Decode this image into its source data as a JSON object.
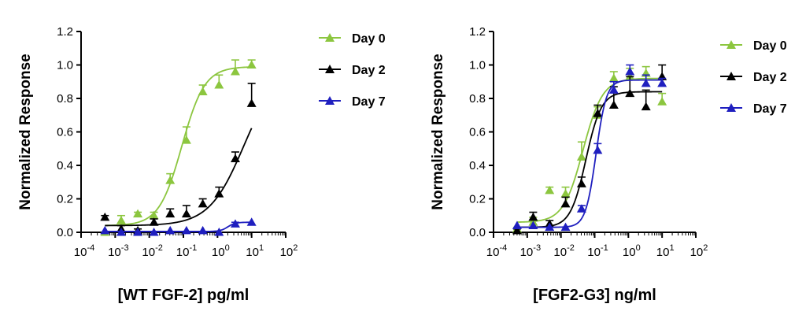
{
  "colors": {
    "day0": "#8cc63f",
    "day2": "#000000",
    "day7": "#1f1fbf"
  },
  "chart_data": [
    {
      "type": "scatter",
      "xlabel": "[WT FGF-2] pg/ml",
      "ylabel": "Normalized Response",
      "xscale": "log",
      "xlim": [
        0.0001,
        100
      ],
      "ylim": [
        0,
        1.2
      ],
      "xticks": [
        {
          "base": "10",
          "exp": "-4"
        },
        {
          "base": "10",
          "exp": "-3"
        },
        {
          "base": "10",
          "exp": "-2"
        },
        {
          "base": "10",
          "exp": "-1"
        },
        {
          "base": "10",
          "exp": "0"
        },
        {
          "base": "10",
          "exp": "1"
        },
        {
          "base": "10",
          "exp": "2"
        }
      ],
      "yticks": [
        "0.0",
        "0.2",
        "0.4",
        "0.6",
        "0.8",
        "1.0",
        "1.2"
      ],
      "legend_position": "right",
      "series": [
        {
          "name": "Day 0",
          "color": "#8cc63f",
          "x": [
            0.0005,
            0.0015,
            0.0046,
            0.0137,
            0.041,
            0.123,
            0.37,
            1.11,
            3.33,
            10
          ],
          "y": [
            0.0,
            0.07,
            0.11,
            0.1,
            0.31,
            0.55,
            0.84,
            0.88,
            0.96,
            1.0
          ],
          "err": [
            0.0,
            0.03,
            0.01,
            0.02,
            0.04,
            0.08,
            0.04,
            0.06,
            0.07,
            0.03
          ],
          "fit": {
            "bottom": 0.04,
            "top": 0.99,
            "ec50": 0.09,
            "hill": 1.3
          }
        },
        {
          "name": "Day 2",
          "color": "#000000",
          "x": [
            0.0005,
            0.0015,
            0.0046,
            0.0137,
            0.041,
            0.123,
            0.37,
            1.11,
            3.33,
            10
          ],
          "y": [
            0.09,
            0.02,
            0.01,
            0.06,
            0.11,
            0.11,
            0.17,
            0.23,
            0.44,
            0.77
          ],
          "err": [
            0.01,
            0.02,
            0.01,
            0.02,
            0.03,
            0.05,
            0.03,
            0.04,
            0.04,
            0.12
          ],
          "fit": {
            "bottom": 0.04,
            "top": 1.0,
            "ec50": 6.0,
            "hill": 0.85
          }
        },
        {
          "name": "Day 7",
          "color": "#1f1fbf",
          "x": [
            0.0005,
            0.0015,
            0.0046,
            0.0137,
            0.041,
            0.123,
            0.37,
            1.11,
            3.33,
            10
          ],
          "y": [
            0.01,
            0.0,
            0.0,
            0.0,
            0.01,
            0.01,
            0.01,
            0.0,
            0.05,
            0.06
          ],
          "err": [
            0.0,
            0.0,
            0.0,
            0.0,
            0.0,
            0.0,
            0.0,
            0.0,
            0.01,
            0.0
          ],
          "fit": {
            "bottom": 0.005,
            "top": 0.06,
            "ec50": 2.0,
            "hill": 4.0
          }
        }
      ]
    },
    {
      "type": "scatter",
      "xlabel": "[FGF2-G3] ng/ml",
      "ylabel": "Normalized Response",
      "xscale": "log",
      "xlim": [
        0.0001,
        100
      ],
      "ylim": [
        0,
        1.2
      ],
      "xticks": [
        {
          "base": "10",
          "exp": "-4"
        },
        {
          "base": "10",
          "exp": "-3"
        },
        {
          "base": "10",
          "exp": "-2"
        },
        {
          "base": "10",
          "exp": "-1"
        },
        {
          "base": "10",
          "exp": "0"
        },
        {
          "base": "10",
          "exp": "1"
        },
        {
          "base": "10",
          "exp": "2"
        }
      ],
      "yticks": [
        "0.0",
        "0.2",
        "0.4",
        "0.6",
        "0.8",
        "1.0",
        "1.2"
      ],
      "legend_position": "right",
      "series": [
        {
          "name": "Day 0",
          "color": "#8cc63f",
          "x": [
            0.0005,
            0.0015,
            0.0046,
            0.0137,
            0.041,
            0.123,
            0.37,
            1.11,
            3.33,
            10
          ],
          "y": [
            0.02,
            0.06,
            0.25,
            0.23,
            0.45,
            0.7,
            0.92,
            0.93,
            0.95,
            0.78
          ],
          "err": [
            0.01,
            0.03,
            0.02,
            0.04,
            0.09,
            0.05,
            0.04,
            0.05,
            0.04,
            0.05
          ],
          "fit": {
            "bottom": 0.06,
            "top": 0.92,
            "ec50": 0.045,
            "hill": 1.5
          }
        },
        {
          "name": "Day 2",
          "color": "#000000",
          "x": [
            0.0005,
            0.0015,
            0.0046,
            0.0137,
            0.041,
            0.123,
            0.37,
            1.11,
            3.33,
            10
          ],
          "y": [
            0.01,
            0.09,
            0.05,
            0.17,
            0.29,
            0.71,
            0.76,
            0.83,
            0.75,
            0.93
          ],
          "err": [
            0.01,
            0.03,
            0.02,
            0.04,
            0.04,
            0.05,
            0.11,
            0.1,
            0.1,
            0.07
          ],
          "fit": {
            "bottom": 0.03,
            "top": 0.84,
            "ec50": 0.055,
            "hill": 1.9
          }
        },
        {
          "name": "Day 7",
          "color": "#1f1fbf",
          "x": [
            0.0005,
            0.0015,
            0.0046,
            0.0137,
            0.041,
            0.123,
            0.37,
            1.11,
            3.33,
            10
          ],
          "y": [
            0.04,
            0.04,
            0.03,
            0.03,
            0.14,
            0.49,
            0.85,
            0.96,
            0.89,
            0.89
          ],
          "err": [
            0.0,
            0.0,
            0.0,
            0.0,
            0.02,
            0.04,
            0.05,
            0.04,
            0.05,
            0.03
          ],
          "fit": {
            "bottom": 0.03,
            "top": 0.91,
            "ec50": 0.11,
            "hill": 2.8
          }
        }
      ]
    }
  ]
}
